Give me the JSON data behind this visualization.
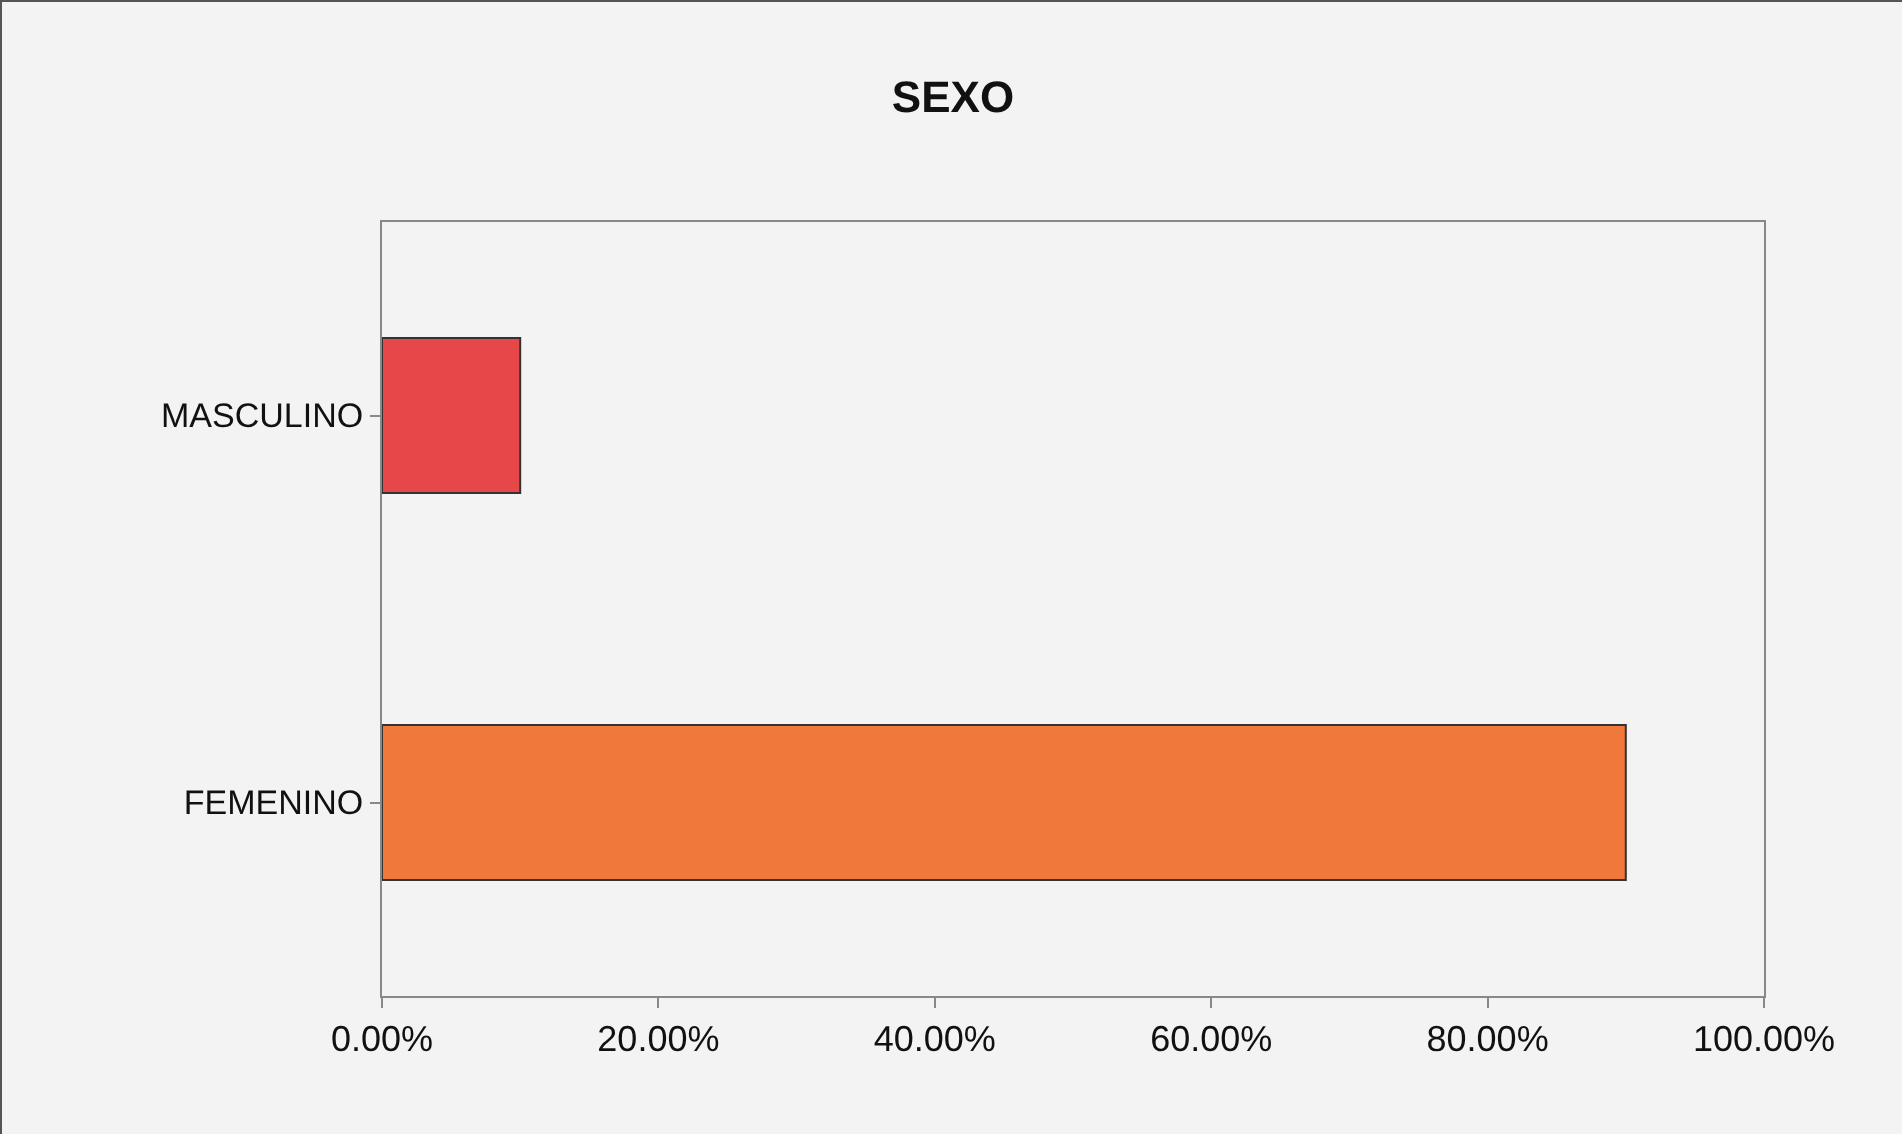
{
  "chart_data": {
    "type": "bar",
    "title": "SEXO",
    "orientation": "horizontal",
    "categories": [
      "MASCULINO",
      "FEMENINO"
    ],
    "values": [
      10,
      90
    ],
    "colors": [
      "#e8474a",
      "#f0783a"
    ],
    "xlim": [
      0,
      100
    ],
    "xticks": [
      {
        "value": 0,
        "label": "0.00%"
      },
      {
        "value": 20,
        "label": "20.00%"
      },
      {
        "value": 40,
        "label": "40.00%"
      },
      {
        "value": 60,
        "label": "60.00%"
      },
      {
        "value": 80,
        "label": "80.00%"
      },
      {
        "value": 100,
        "label": "100.00%"
      }
    ],
    "grid": false,
    "legend": false
  }
}
